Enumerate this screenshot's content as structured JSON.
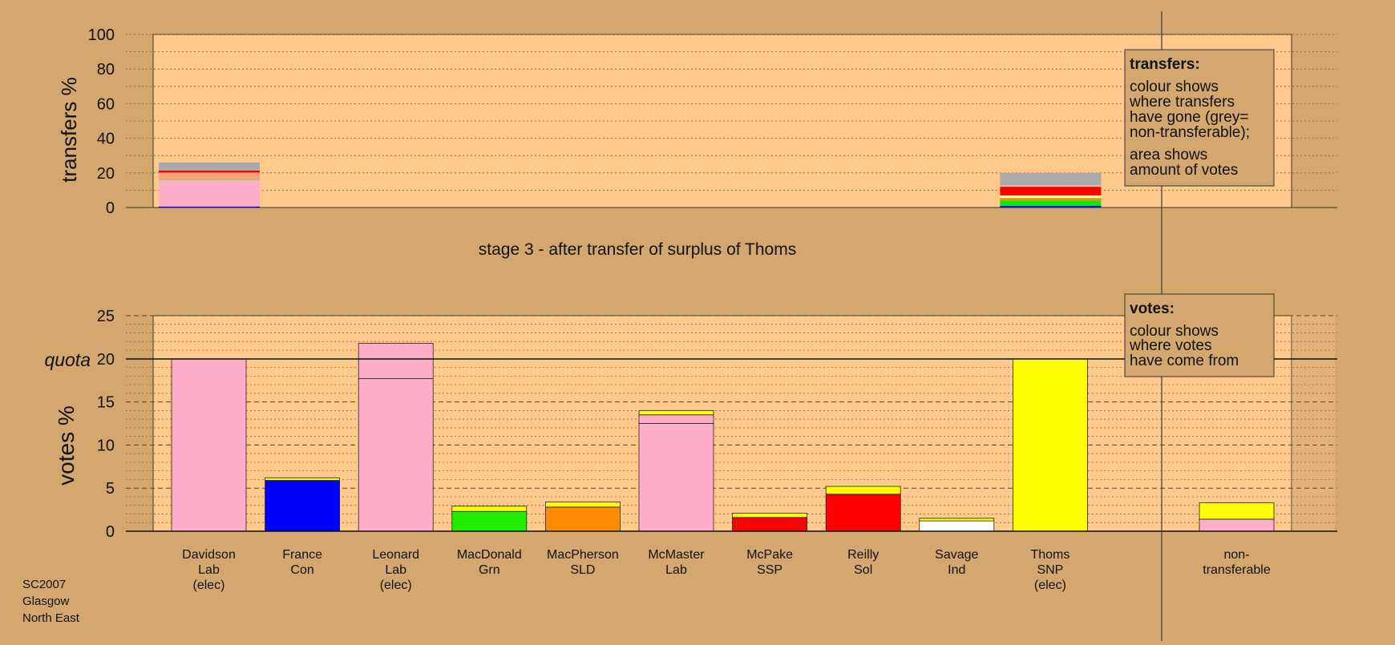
{
  "chart_data": [
    {
      "id": "transfers",
      "type": "bar",
      "ylabel": "transfers %",
      "ylim": [
        0,
        100
      ],
      "yticks": [
        0,
        20,
        40,
        60,
        80,
        100
      ],
      "bars": [
        {
          "candidate": "Davidson",
          "segments": [
            {
              "color": "#0000ff",
              "value": 0.6
            },
            {
              "color": "#ffaec9",
              "value": 15.4
            },
            {
              "color": "#7cd32a",
              "value": 0.6
            },
            {
              "color": "#ff9f80",
              "value": 3.6
            },
            {
              "color": "#ff0000",
              "value": 1.2
            },
            {
              "color": "#aaaaaa",
              "value": 4.6
            }
          ]
        },
        {
          "candidate": "Thoms",
          "segments": [
            {
              "color": "#0000ff",
              "value": 1.0
            },
            {
              "color": "#00ee00",
              "value": 3.0
            },
            {
              "color": "#ff8c00",
              "value": 1.5
            },
            {
              "color": "#ffffa0",
              "value": 1.5
            },
            {
              "color": "#ff0000",
              "value": 5.0
            },
            {
              "color": "#ffc090",
              "value": 0.8
            },
            {
              "color": "#aaaaaa",
              "value": 7.2
            }
          ]
        }
      ]
    },
    {
      "id": "votes",
      "type": "bar",
      "ylabel": "votes %",
      "ylim": [
        0,
        25
      ],
      "yticks": [
        0,
        5,
        10,
        15,
        20,
        25
      ],
      "quota": 20,
      "quota_label": "quota",
      "categories": [
        {
          "name": "Davidson",
          "party": "Lab",
          "note": "(elec)",
          "segments": [
            {
              "color": "#ffaec9",
              "value": 20
            }
          ]
        },
        {
          "name": "France",
          "party": "Con",
          "note": "",
          "segments": [
            {
              "color": "#0000ff",
              "value": 5.9
            },
            {
              "color": "#ffff00",
              "value": 0.3
            }
          ]
        },
        {
          "name": "Leonard",
          "party": "Lab",
          "note": "(elec)",
          "segments": [
            {
              "color": "#ffaec9",
              "value": 17.7
            },
            {
              "color": "#ffaec9",
              "value": 4.1
            }
          ]
        },
        {
          "name": "MacDonald",
          "party": "Grn",
          "note": "",
          "segments": [
            {
              "color": "#22ee00",
              "value": 2.3
            },
            {
              "color": "#ffff00",
              "value": 0.6
            }
          ]
        },
        {
          "name": "MacPherson",
          "party": "SLD",
          "note": "",
          "segments": [
            {
              "color": "#ff8c00",
              "value": 2.8
            },
            {
              "color": "#ffff00",
              "value": 0.6
            }
          ]
        },
        {
          "name": "McMaster",
          "party": "Lab",
          "note": "",
          "segments": [
            {
              "color": "#ffaec9",
              "value": 12.5
            },
            {
              "color": "#ffaec9",
              "value": 1.0
            },
            {
              "color": "#ffff00",
              "value": 0.5
            }
          ]
        },
        {
          "name": "McPake",
          "party": "SSP",
          "note": "",
          "segments": [
            {
              "color": "#ff0000",
              "value": 1.6
            },
            {
              "color": "#ffff00",
              "value": 0.5
            }
          ]
        },
        {
          "name": "Reilly",
          "party": "Sol",
          "note": "",
          "segments": [
            {
              "color": "#ff0000",
              "value": 4.3
            },
            {
              "color": "#ffff00",
              "value": 0.9
            }
          ]
        },
        {
          "name": "Savage",
          "party": "Ind",
          "note": "",
          "segments": [
            {
              "color": "#ffffff",
              "value": 1.2
            },
            {
              "color": "#ffff00",
              "value": 0.3
            }
          ]
        },
        {
          "name": "Thoms",
          "party": "SNP",
          "note": "(elec)",
          "segments": [
            {
              "color": "#ffff00",
              "value": 20
            }
          ]
        },
        {
          "name": "non-",
          "party": "transferable",
          "note": "",
          "segments": [
            {
              "color": "#ffaec9",
              "value": 1.4
            },
            {
              "color": "#ffff00",
              "value": 1.9
            }
          ]
        }
      ]
    }
  ],
  "stage_title": "stage 3 - after transfer of surplus of Thoms",
  "legend_transfers": {
    "title": "transfers:",
    "lines1": [
      "colour shows",
      "where transfers",
      "have gone (grey=",
      "non-transferable);"
    ],
    "lines2": [
      "area shows",
      "amount of votes"
    ]
  },
  "legend_votes": {
    "title": "votes:",
    "lines": [
      "colour shows",
      "where votes",
      "have come from"
    ]
  },
  "footer": [
    "SC2007",
    "Glasgow",
    "North East"
  ]
}
